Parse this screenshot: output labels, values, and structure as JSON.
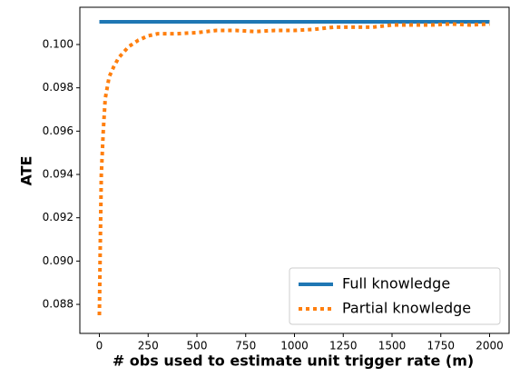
{
  "chart_data": {
    "type": "line",
    "xlabel": "# obs used to estimate unit trigger rate (m)",
    "ylabel": "ATE",
    "xlim": [
      -100,
      2100
    ],
    "xticks": [
      0,
      250,
      500,
      750,
      1000,
      1250,
      1500,
      1750,
      2000
    ],
    "ylim": [
      0.08666,
      0.10172
    ],
    "yticks": [
      0.088,
      {
        "value": 0.09,
        "label": "0.090"
      },
      0.092,
      0.094,
      0.096,
      0.098,
      {
        "value": 0.1,
        "label": "0.100"
      }
    ],
    "legend": "lower right",
    "series": [
      {
        "name": "Full knowledge",
        "color": "#1f77b4",
        "style": "solid",
        "x": [
          0,
          2000
        ],
        "values": [
          0.10105,
          0.10105
        ]
      },
      {
        "name": "Partial knowledge",
        "color": "#ff7f0e",
        "style": "dotted",
        "x": [
          0,
          5,
          10,
          20,
          30,
          50,
          75,
          100,
          150,
          200,
          250,
          300,
          400,
          500,
          600,
          700,
          800,
          900,
          1000,
          1100,
          1200,
          1300,
          1400,
          1500,
          1600,
          1700,
          1800,
          1900,
          2000
        ],
        "values": [
          0.0875,
          0.091,
          0.094,
          0.096,
          0.0975,
          0.0985,
          0.099,
          0.0994,
          0.0999,
          0.1002,
          0.1004,
          0.1005,
          0.1005,
          0.10055,
          0.10065,
          0.10065,
          0.1006,
          0.10065,
          0.10065,
          0.1007,
          0.1008,
          0.1008,
          0.1008,
          0.1009,
          0.1009,
          0.1009,
          0.10095,
          0.1009,
          0.10095
        ]
      }
    ]
  }
}
